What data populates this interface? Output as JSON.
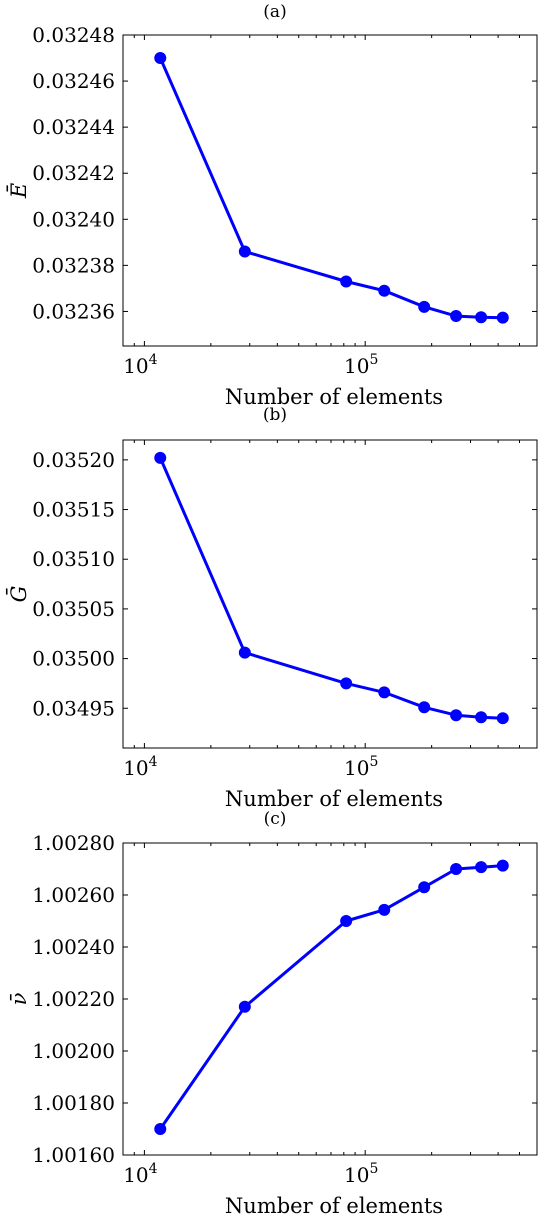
{
  "chart_data": [
    {
      "type": "line",
      "title": "(a)",
      "xlabel": "Number of elements",
      "ylabel": "Ē",
      "xscale": "log",
      "xlim": [
        8000,
        600000
      ],
      "ylim": [
        0.032345,
        0.03248
      ],
      "xticks": [
        {
          "value": 10000,
          "base": "10",
          "exp": "4"
        },
        {
          "value": 100000,
          "base": "10",
          "exp": "5"
        }
      ],
      "yticks": [
        0.03236,
        0.03238,
        0.0324,
        0.03242,
        0.03244,
        0.03246,
        0.03248
      ],
      "ytick_labels": [
        "0.03236",
        "0.03238",
        "0.03240",
        "0.03242",
        "0.03244",
        "0.03246",
        "0.03248"
      ],
      "color": "#0000ff",
      "x": [
        11800,
        28500,
        82000,
        122000,
        185000,
        258000,
        335000,
        420000
      ],
      "y": [
        0.03247,
        0.032386,
        0.032373,
        0.032369,
        0.032362,
        0.032358,
        0.0323575,
        0.0323573
      ]
    },
    {
      "type": "line",
      "title": "(b)",
      "xlabel": "Number of elements",
      "ylabel": "Ḡ",
      "xscale": "log",
      "xlim": [
        8000,
        600000
      ],
      "ylim": [
        0.03491,
        0.03522
      ],
      "xticks": [
        {
          "value": 10000,
          "base": "10",
          "exp": "4"
        },
        {
          "value": 100000,
          "base": "10",
          "exp": "5"
        }
      ],
      "yticks": [
        0.03495,
        0.035,
        0.03505,
        0.0351,
        0.03515,
        0.0352
      ],
      "ytick_labels": [
        "0.03495",
        "0.03500",
        "0.03505",
        "0.03510",
        "0.03515",
        "0.03520"
      ],
      "color": "#0000ff",
      "x": [
        11800,
        28500,
        82000,
        122000,
        185000,
        258000,
        335000,
        420000
      ],
      "y": [
        0.035202,
        0.035006,
        0.034975,
        0.034966,
        0.034951,
        0.034943,
        0.034941,
        0.03494
      ]
    },
    {
      "type": "line",
      "title": "(c)",
      "xlabel": "Number of elements",
      "ylabel": "ν̄",
      "xscale": "log",
      "xlim": [
        8000,
        600000
      ],
      "ylim": [
        1.0016,
        1.0028
      ],
      "xticks": [
        {
          "value": 10000,
          "base": "10",
          "exp": "4"
        },
        {
          "value": 100000,
          "base": "10",
          "exp": "5"
        }
      ],
      "yticks": [
        1.0016,
        1.0018,
        1.002,
        1.0022,
        1.0024,
        1.0026,
        1.0028
      ],
      "ytick_labels": [
        "1.00160",
        "1.00180",
        "1.00200",
        "1.00220",
        "1.00240",
        "1.00260",
        "1.00280"
      ],
      "color": "#0000ff",
      "x": [
        11800,
        28500,
        82000,
        122000,
        185000,
        258000,
        335000,
        420000
      ],
      "y": [
        1.0017,
        1.00217,
        1.0025,
        1.002543,
        1.00263,
        1.0027,
        1.002707,
        1.002713
      ]
    }
  ]
}
